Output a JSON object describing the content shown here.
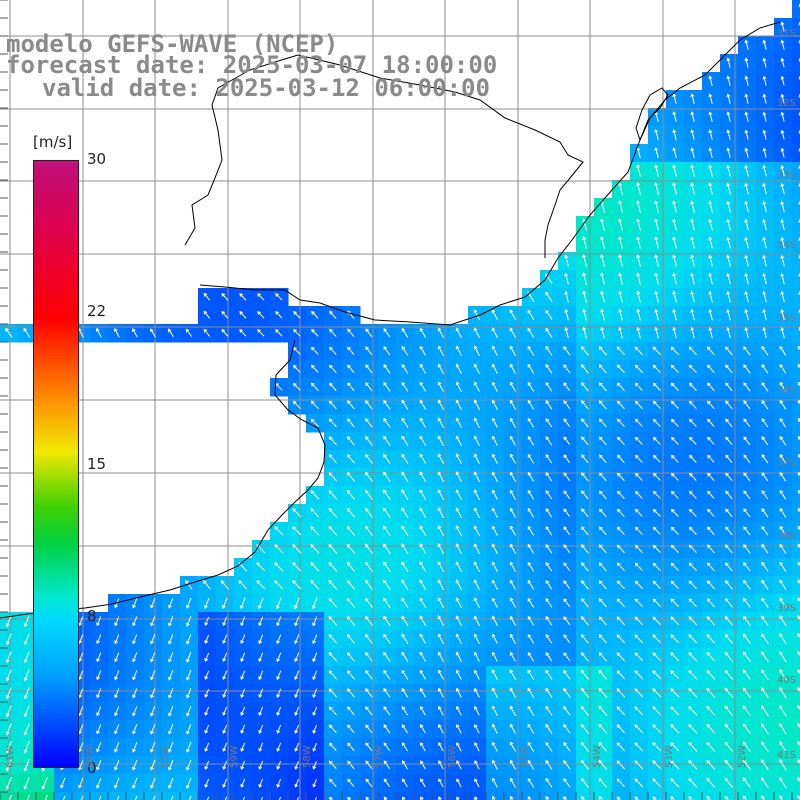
{
  "title": {
    "line1": "modelo GEFS-WAVE (NCEP)",
    "line2": "forecast date: 2025-03-07 18:00:00",
    "line3": "valid date: 2025-03-12 06:00:00"
  },
  "colorbar": {
    "unit": "[m/s]",
    "ticks": [
      "30",
      "22",
      "15",
      "8",
      "0"
    ],
    "min": 0,
    "max": 30,
    "colors": [
      "#0000ff",
      "#00a0ff",
      "#00e8e0",
      "#00d040",
      "#f0e800",
      "#ff8000",
      "#ff0000",
      "#c0107a"
    ]
  },
  "lat_labels": [
    "31S",
    "32S",
    "33S",
    "34S",
    "35S",
    "36S",
    "37S",
    "38S",
    "39S",
    "40S",
    "41S"
  ],
  "lon_labels": [
    "61W",
    "60W",
    "59W",
    "58W",
    "57W",
    "56W",
    "55W",
    "54W",
    "53W",
    "52W",
    "51W"
  ],
  "colors": {
    "land": "#ffffff",
    "grid": "#8c8c8c",
    "coast": "#000000",
    "arrow": "#ffffff"
  }
}
